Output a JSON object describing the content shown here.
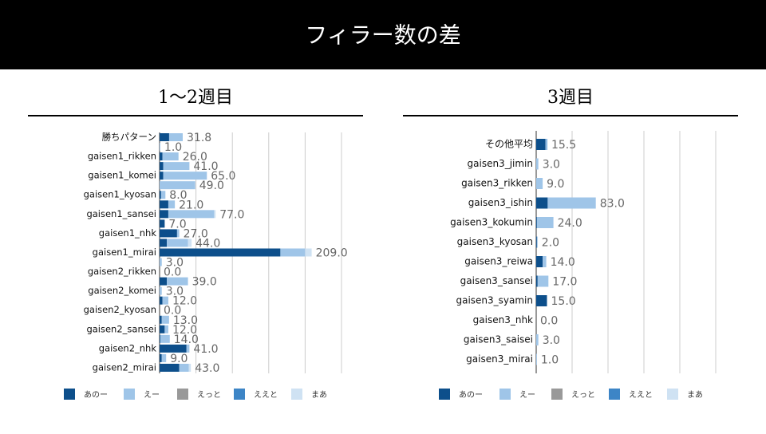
{
  "title": "フィラー数の差",
  "chart_data": [
    {
      "type": "stacked-bar-h",
      "title": "1〜2週目",
      "categories": [
        "勝ちパターン",
        null,
        "gaisen1_rikken",
        null,
        "gaisen1_komei",
        null,
        "gaisen1_kyosan",
        null,
        "gaisen1_sansei",
        null,
        "gaisen1_nhk",
        null,
        "gaisen1_mirai",
        null,
        "gaisen2_rikken",
        null,
        "gaisen2_komei",
        null,
        "gaisen2_kyosan",
        null,
        "gaisen2_sansei",
        null,
        "gaisen2_nhk",
        null,
        "gaisen2_mirai"
      ],
      "series": [
        {
          "name": "あのー",
          "color": "#0d4f8b",
          "values": [
            13.1,
            0,
            4,
            5,
            5,
            0,
            2,
            12,
            12,
            7,
            24,
            10,
            166,
            0,
            0,
            10,
            0,
            4,
            0,
            3,
            7,
            1,
            37,
            3,
            27
          ]
        },
        {
          "name": "えー",
          "color": "#9fc5e8",
          "values": [
            18.7,
            1,
            22,
            36,
            60,
            49,
            6,
            9,
            63,
            0,
            3,
            29,
            34,
            3,
            0,
            29,
            3,
            8,
            0,
            10,
            5,
            13,
            4,
            6,
            13
          ]
        },
        {
          "name": "えっと",
          "color": "#999999",
          "values": [
            0,
            0,
            0,
            0,
            0,
            0,
            0,
            0,
            0,
            0,
            0,
            0,
            0,
            0,
            0,
            0,
            0,
            0,
            0,
            0,
            0,
            0,
            0,
            0,
            0
          ]
        },
        {
          "name": "ええと",
          "color": "#3d85c6",
          "values": [
            0,
            0,
            0,
            0,
            0,
            0,
            0,
            0,
            0,
            0,
            0,
            0,
            0,
            0,
            0,
            0,
            0,
            0,
            0,
            0,
            0,
            0,
            0,
            0,
            0
          ]
        },
        {
          "name": "まあ",
          "color": "#cfe2f3",
          "values": [
            0,
            0,
            0,
            0,
            0,
            0,
            0,
            0,
            2,
            0,
            0,
            5,
            9,
            0,
            0,
            0,
            0,
            0,
            0,
            0,
            0,
            0,
            0,
            0,
            3
          ]
        }
      ],
      "total_labels": [
        "31.8",
        "1.0",
        "26.0",
        "41.0",
        "65.0",
        "49.0",
        "8.0",
        "21.0",
        "77.0",
        "7.0",
        "27.0",
        "44.0",
        "209.0",
        "3.0",
        "0.0",
        "39.0",
        "3.0",
        "12.0",
        "0.0",
        "13.0",
        "12.0",
        "14.0",
        "41.0",
        "9.0",
        "43.0"
      ],
      "xlim": [
        0,
        250
      ],
      "xticks": [
        0,
        50,
        100,
        150,
        200,
        250
      ],
      "grid": true
    },
    {
      "type": "stacked-bar-h",
      "title": "3週目",
      "categories": [
        "その他平均",
        "gaisen3_jimin",
        "gaisen3_rikken",
        "gaisen3_ishin",
        "gaisen3_kokumin",
        "gaisen3_kyosan",
        "gaisen3_reiwa",
        "gaisen3_sansei",
        "gaisen3_syamin",
        "gaisen3_nhk",
        "gaisen3_saisei",
        "gaisen3_mirai"
      ],
      "series": [
        {
          "name": "あのー",
          "color": "#0d4f8b",
          "values": [
            13,
            0,
            0,
            16,
            1,
            1,
            9,
            2,
            15,
            0,
            0,
            0
          ]
        },
        {
          "name": "えー",
          "color": "#9fc5e8",
          "values": [
            2,
            3,
            9,
            67,
            23,
            1,
            5,
            15,
            0,
            0,
            3,
            1
          ]
        },
        {
          "name": "えっと",
          "color": "#999999",
          "values": [
            0,
            0,
            0,
            0,
            0,
            0,
            0,
            0,
            0,
            0,
            0,
            0
          ]
        },
        {
          "name": "ええと",
          "color": "#3d85c6",
          "values": [
            0.5,
            0,
            0,
            0,
            0,
            0,
            0,
            0,
            0,
            0,
            0,
            0
          ]
        },
        {
          "name": "まあ",
          "color": "#cfe2f3",
          "values": [
            0,
            0,
            0,
            0,
            0,
            0,
            0,
            0,
            0,
            0,
            0,
            0
          ]
        }
      ],
      "total_labels": [
        "15.5",
        "3.0",
        "9.0",
        "83.0",
        "24.0",
        "2.0",
        "14.0",
        "17.0",
        "15.0",
        "0.0",
        "3.0",
        "1.0"
      ],
      "xlim": [
        0,
        250
      ],
      "xticks": [
        0,
        50,
        100,
        150,
        200,
        250
      ],
      "grid": true
    }
  ]
}
